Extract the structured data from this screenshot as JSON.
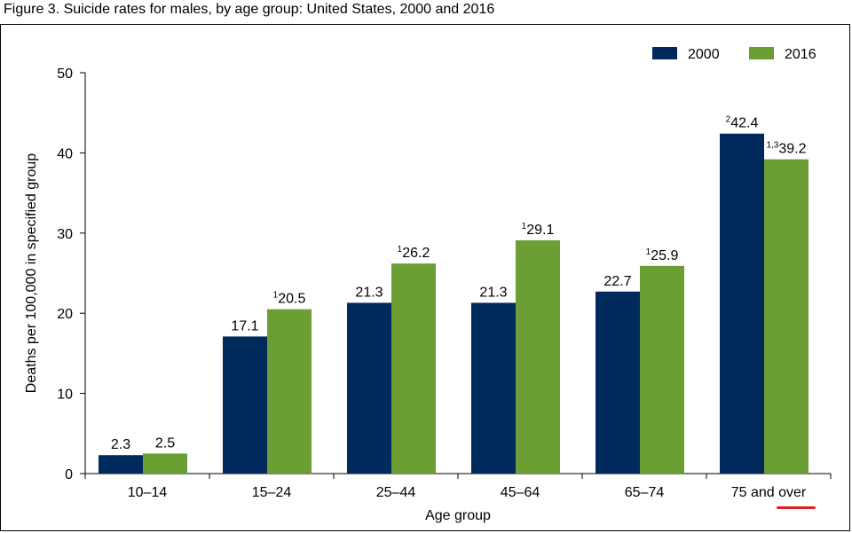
{
  "figure_title": "Figure 3. Suicide rates for males, by age group: United States, 2000 and 2016",
  "colors": {
    "2000": "#002a5c",
    "2016": "#6b9e33",
    "underline": "#e31b23"
  },
  "chart_data": {
    "type": "bar",
    "title": "",
    "xlabel": "Age group",
    "ylabel": "Deaths per 100,000 in specified group",
    "ylim": [
      0,
      50
    ],
    "yticks": [
      0,
      10,
      20,
      30,
      40,
      50
    ],
    "categories": [
      "10–14",
      "15–24",
      "25–44",
      "45–64",
      "65–74",
      "75 and over"
    ],
    "legend_position": "top-right",
    "grid": false,
    "series": [
      {
        "name": "2000",
        "values": [
          2.3,
          17.1,
          21.3,
          21.3,
          22.7,
          42.4
        ],
        "labels": [
          "2.3",
          "17.1",
          "21.3",
          "21.3",
          "22.7",
          "42.4"
        ],
        "footnotes": [
          "",
          "",
          "",
          "",
          "",
          "2"
        ]
      },
      {
        "name": "2016",
        "values": [
          2.5,
          20.5,
          26.2,
          29.1,
          25.9,
          39.2
        ],
        "labels": [
          "2.5",
          "20.5",
          "26.2",
          "29.1",
          "25.9",
          "39.2"
        ],
        "footnotes": [
          "",
          "1",
          "1",
          "1",
          "1",
          "1,3"
        ]
      }
    ]
  }
}
